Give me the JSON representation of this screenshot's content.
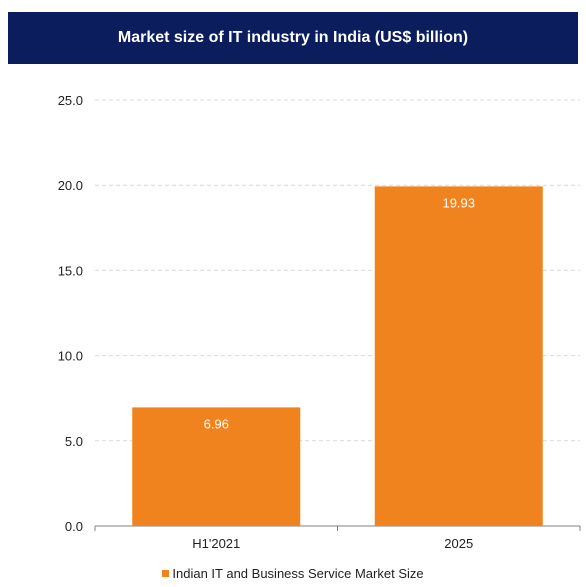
{
  "colors": {
    "title_bg": "#0b1d5c",
    "bar": "#f0831e",
    "grid": "#d9d9d9",
    "axis": "#808080"
  },
  "chart_data": {
    "type": "bar",
    "title": "Market size of IT industry in India (US$ billion)",
    "categories": [
      "H1'2021",
      "2025"
    ],
    "series": [
      {
        "name": "Indian IT and Business Service Market Size",
        "values": [
          6.96,
          19.93
        ]
      }
    ],
    "data_labels": [
      "6.96",
      "19.93"
    ],
    "y_ticks": [
      "0.0",
      "5.0",
      "10.0",
      "15.0",
      "20.0",
      "25.0"
    ],
    "ylim": [
      0,
      25
    ],
    "grid": true,
    "legend_position": "bottom"
  }
}
